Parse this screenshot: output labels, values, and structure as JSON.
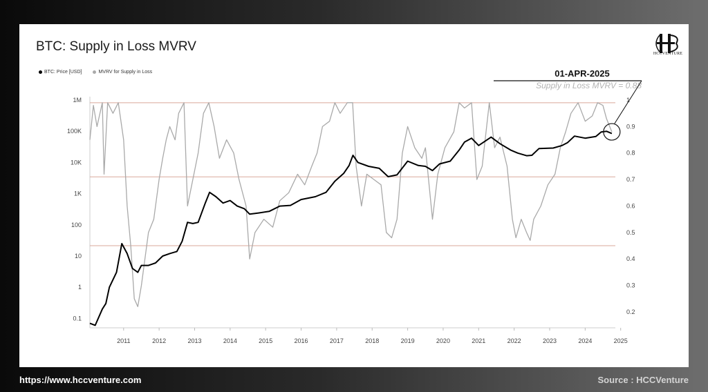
{
  "title": "BTC: Supply in Loss MVRV",
  "legend": [
    {
      "label": "BTC: Price [USD]",
      "color": "#000000"
    },
    {
      "label": "MVRV for Supply in Loss",
      "color": "#aaaaaa"
    }
  ],
  "logo_text": "HCCVENTURE",
  "annotation": {
    "date": "01-APR-2025",
    "text": "Supply in Loss MVRV = 0.88"
  },
  "footer": {
    "url": "https://www.hccventure.com",
    "source": "Source : HCCVenture"
  },
  "colors": {
    "price": "#000000",
    "mvrv": "#a9a9a9",
    "band": "#d9a79a"
  },
  "chart_data": {
    "type": "line",
    "title": "BTC: Supply in Loss MVRV",
    "x_ticks": [
      "2011",
      "2012",
      "2013",
      "2014",
      "2015",
      "2016",
      "2017",
      "2018",
      "2019",
      "2020",
      "2021",
      "2022",
      "2023",
      "2024",
      "2025"
    ],
    "y_left_ticks": [
      "1M",
      "100K",
      "10K",
      "1K",
      "100",
      "10",
      "1",
      "0.1"
    ],
    "y_left_scale": "log",
    "y_left_range": [
      0.05,
      1000000
    ],
    "y_right_ticks": [
      "1",
      "0.9",
      "0.8",
      "0.7",
      "0.6",
      "0.5",
      "0.4",
      "0.3",
      "0.2"
    ],
    "y_right_range": [
      0.14,
      1.0
    ],
    "x_range": [
      2010.55,
      2025.35
    ],
    "reference_lines_right_axis": [
      0.99,
      0.71,
      0.45
    ],
    "series": [
      {
        "name": "BTC: Price [USD]",
        "axis": "left",
        "points": [
          [
            2010.55,
            0.07
          ],
          [
            2010.7,
            0.06
          ],
          [
            2010.9,
            0.2
          ],
          [
            2011.0,
            0.3
          ],
          [
            2011.1,
            1
          ],
          [
            2011.3,
            3
          ],
          [
            2011.45,
            25
          ],
          [
            2011.6,
            12
          ],
          [
            2011.75,
            4
          ],
          [
            2011.9,
            3
          ],
          [
            2012.0,
            5
          ],
          [
            2012.2,
            5
          ],
          [
            2012.4,
            6
          ],
          [
            2012.6,
            10
          ],
          [
            2012.8,
            12
          ],
          [
            2013.0,
            14
          ],
          [
            2013.15,
            30
          ],
          [
            2013.3,
            120
          ],
          [
            2013.45,
            110
          ],
          [
            2013.6,
            120
          ],
          [
            2013.8,
            500
          ],
          [
            2013.92,
            1100
          ],
          [
            2014.1,
            800
          ],
          [
            2014.3,
            500
          ],
          [
            2014.5,
            600
          ],
          [
            2014.7,
            400
          ],
          [
            2014.9,
            330
          ],
          [
            2015.05,
            220
          ],
          [
            2015.3,
            240
          ],
          [
            2015.6,
            270
          ],
          [
            2015.9,
            400
          ],
          [
            2016.2,
            420
          ],
          [
            2016.5,
            650
          ],
          [
            2016.9,
            800
          ],
          [
            2017.2,
            1100
          ],
          [
            2017.45,
            2500
          ],
          [
            2017.7,
            4500
          ],
          [
            2017.85,
            8000
          ],
          [
            2017.96,
            17000
          ],
          [
            2018.1,
            10000
          ],
          [
            2018.4,
            7500
          ],
          [
            2018.7,
            6500
          ],
          [
            2018.95,
            3500
          ],
          [
            2019.2,
            4000
          ],
          [
            2019.5,
            11000
          ],
          [
            2019.8,
            8000
          ],
          [
            2020.0,
            7500
          ],
          [
            2020.2,
            5500
          ],
          [
            2020.4,
            9000
          ],
          [
            2020.7,
            11000
          ],
          [
            2020.95,
            25000
          ],
          [
            2021.1,
            45000
          ],
          [
            2021.3,
            60000
          ],
          [
            2021.5,
            35000
          ],
          [
            2021.85,
            65000
          ],
          [
            2022.1,
            40000
          ],
          [
            2022.4,
            25000
          ],
          [
            2022.6,
            20000
          ],
          [
            2022.85,
            16500
          ],
          [
            2023.0,
            17000
          ],
          [
            2023.2,
            28000
          ],
          [
            2023.6,
            29000
          ],
          [
            2023.85,
            35000
          ],
          [
            2024.0,
            43000
          ],
          [
            2024.2,
            70000
          ],
          [
            2024.5,
            60000
          ],
          [
            2024.8,
            68000
          ],
          [
            2024.95,
            95000
          ],
          [
            2025.1,
            100000
          ],
          [
            2025.25,
            85000
          ]
        ]
      },
      {
        "name": "MVRV for Supply in Loss",
        "axis": "right",
        "points": [
          [
            2010.55,
            0.85
          ],
          [
            2010.65,
            0.98
          ],
          [
            2010.75,
            0.9
          ],
          [
            2010.9,
            0.99
          ],
          [
            2010.95,
            0.72
          ],
          [
            2011.05,
            0.99
          ],
          [
            2011.2,
            0.95
          ],
          [
            2011.35,
            0.99
          ],
          [
            2011.5,
            0.85
          ],
          [
            2011.6,
            0.6
          ],
          [
            2011.7,
            0.45
          ],
          [
            2011.8,
            0.25
          ],
          [
            2011.9,
            0.22
          ],
          [
            2012.0,
            0.3
          ],
          [
            2012.1,
            0.4
          ],
          [
            2012.2,
            0.5
          ],
          [
            2012.35,
            0.55
          ],
          [
            2012.5,
            0.7
          ],
          [
            2012.6,
            0.78
          ],
          [
            2012.7,
            0.85
          ],
          [
            2012.8,
            0.9
          ],
          [
            2012.95,
            0.85
          ],
          [
            2013.05,
            0.95
          ],
          [
            2013.2,
            0.99
          ],
          [
            2013.3,
            0.6
          ],
          [
            2013.45,
            0.7
          ],
          [
            2013.6,
            0.8
          ],
          [
            2013.75,
            0.95
          ],
          [
            2013.9,
            0.99
          ],
          [
            2014.05,
            0.9
          ],
          [
            2014.2,
            0.78
          ],
          [
            2014.4,
            0.85
          ],
          [
            2014.6,
            0.8
          ],
          [
            2014.75,
            0.7
          ],
          [
            2014.95,
            0.6
          ],
          [
            2015.05,
            0.4
          ],
          [
            2015.2,
            0.5
          ],
          [
            2015.45,
            0.55
          ],
          [
            2015.7,
            0.52
          ],
          [
            2015.9,
            0.62
          ],
          [
            2016.15,
            0.65
          ],
          [
            2016.4,
            0.72
          ],
          [
            2016.6,
            0.68
          ],
          [
            2016.8,
            0.75
          ],
          [
            2016.95,
            0.8
          ],
          [
            2017.1,
            0.9
          ],
          [
            2017.3,
            0.92
          ],
          [
            2017.45,
            0.99
          ],
          [
            2017.6,
            0.95
          ],
          [
            2017.8,
            0.99
          ],
          [
            2017.95,
            0.99
          ],
          [
            2018.05,
            0.75
          ],
          [
            2018.2,
            0.6
          ],
          [
            2018.35,
            0.72
          ],
          [
            2018.55,
            0.7
          ],
          [
            2018.75,
            0.68
          ],
          [
            2018.9,
            0.5
          ],
          [
            2019.05,
            0.48
          ],
          [
            2019.2,
            0.55
          ],
          [
            2019.35,
            0.8
          ],
          [
            2019.5,
            0.9
          ],
          [
            2019.7,
            0.82
          ],
          [
            2019.9,
            0.78
          ],
          [
            2020.0,
            0.82
          ],
          [
            2020.2,
            0.55
          ],
          [
            2020.35,
            0.72
          ],
          [
            2020.55,
            0.82
          ],
          [
            2020.8,
            0.88
          ],
          [
            2020.95,
            0.99
          ],
          [
            2021.1,
            0.97
          ],
          [
            2021.3,
            0.99
          ],
          [
            2021.45,
            0.7
          ],
          [
            2021.6,
            0.75
          ],
          [
            2021.8,
            0.99
          ],
          [
            2021.95,
            0.82
          ],
          [
            2022.1,
            0.86
          ],
          [
            2022.3,
            0.75
          ],
          [
            2022.45,
            0.55
          ],
          [
            2022.55,
            0.48
          ],
          [
            2022.7,
            0.55
          ],
          [
            2022.85,
            0.5
          ],
          [
            2022.95,
            0.47
          ],
          [
            2023.05,
            0.55
          ],
          [
            2023.25,
            0.6
          ],
          [
            2023.45,
            0.68
          ],
          [
            2023.65,
            0.72
          ],
          [
            2023.8,
            0.82
          ],
          [
            2023.95,
            0.88
          ],
          [
            2024.1,
            0.95
          ],
          [
            2024.3,
            0.99
          ],
          [
            2024.5,
            0.92
          ],
          [
            2024.7,
            0.94
          ],
          [
            2024.85,
            0.99
          ],
          [
            2025.0,
            0.98
          ],
          [
            2025.1,
            0.93
          ],
          [
            2025.25,
            0.88
          ]
        ]
      }
    ]
  }
}
